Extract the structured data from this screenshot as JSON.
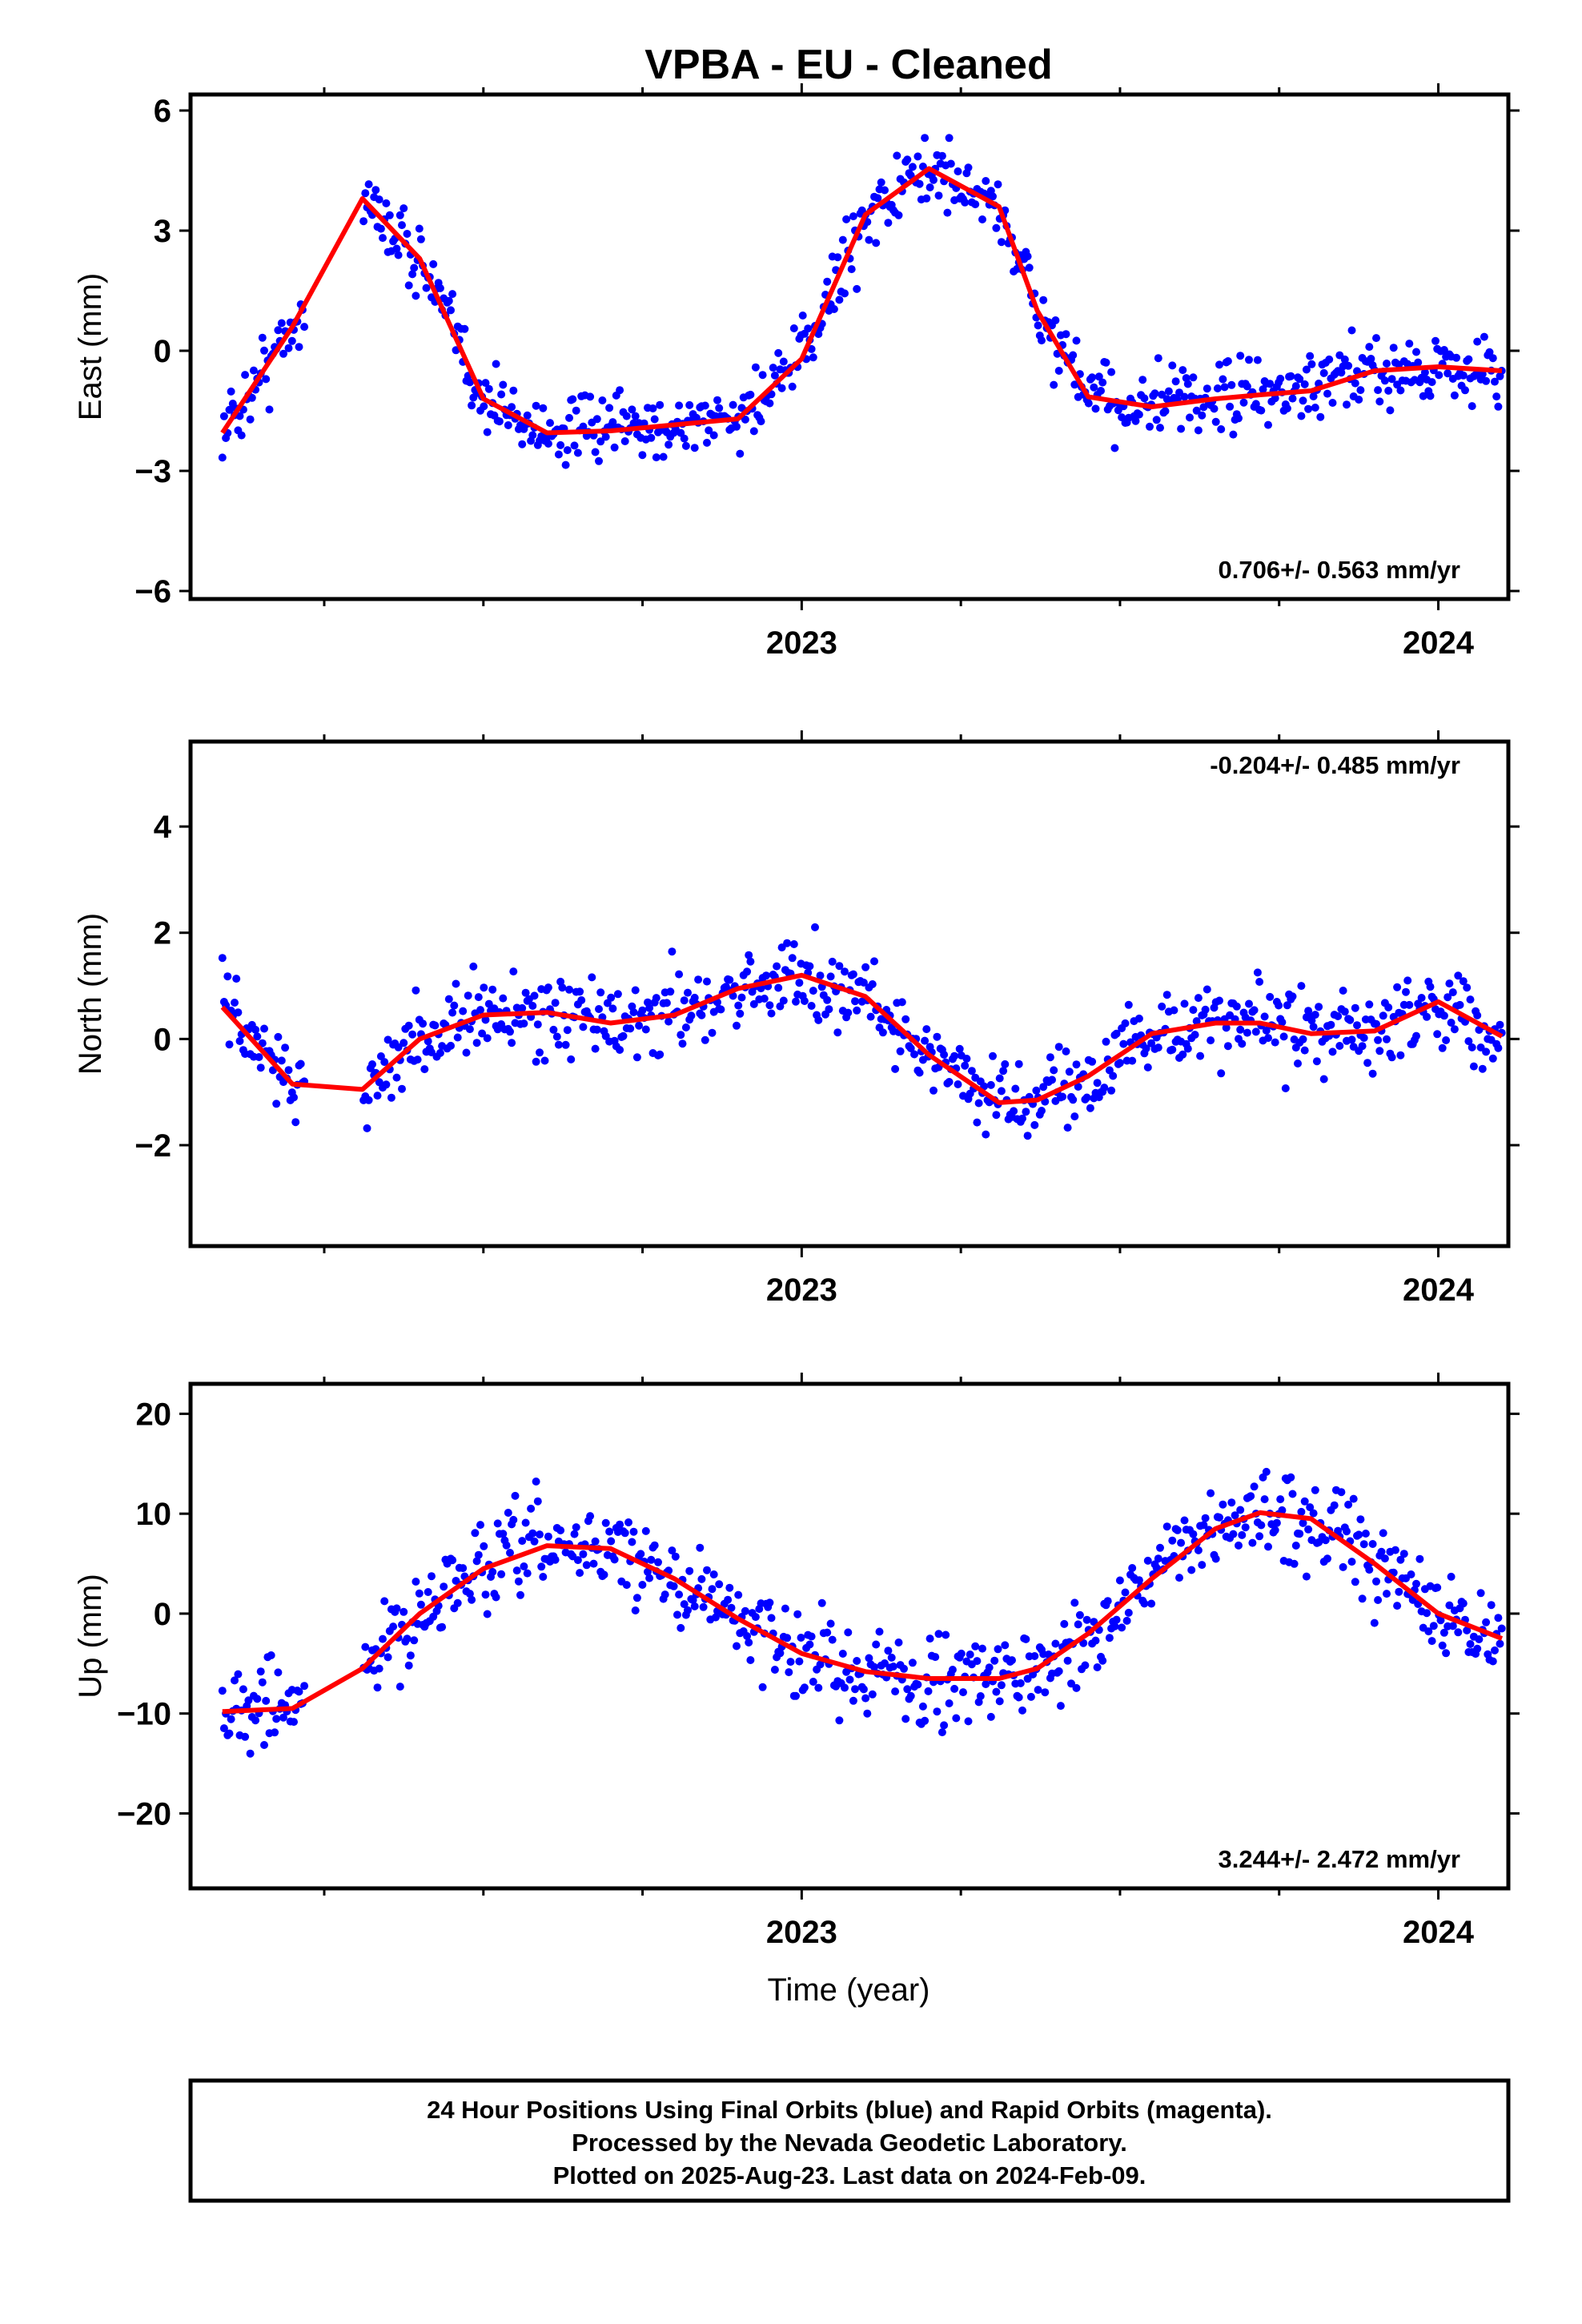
{
  "title": "VPBA  - EU - Cleaned",
  "xlabel": "Time (year)",
  "footer": {
    "line1": "24 Hour Positions Using Final Orbits (blue) and Rapid Orbits (magenta).",
    "line2": "Processed by the Nevada Geodetic Laboratory.",
    "line3": "Plotted on 2025-Aug-23. Last data on 2024-Feb-09."
  },
  "colors": {
    "final_orbit_points": "#0000ff",
    "fit_curve": "#ff0000",
    "axes": "#000000"
  },
  "chart_data": [
    {
      "type": "scatter",
      "ylabel": "East (mm)",
      "rate": "0.706+/- 0.563 mm/yr",
      "xlim": [
        2022.04,
        2024.11
      ],
      "ylim": [
        -6.2,
        6.4
      ],
      "xticks": [
        2023,
        2024
      ],
      "yticks": [
        6,
        3,
        0,
        -3,
        -6
      ],
      "ytick_labels": [
        "6",
        "3",
        "0",
        "−3",
        "−6"
      ],
      "fit": {
        "name": "fit",
        "x": [
          2022.09,
          2022.2,
          2022.31,
          2022.4,
          2022.5,
          2022.6,
          2022.7,
          2022.8,
          2022.9,
          2023.0,
          2023.1,
          2023.2,
          2023.31,
          2023.37,
          2023.45,
          2023.55,
          2023.65,
          2023.72,
          2023.8,
          2023.9,
          2024.0,
          2024.1
        ],
        "y": [
          -2.05,
          0.6,
          3.8,
          2.3,
          -1.2,
          -2.05,
          -2.0,
          -1.85,
          -1.7,
          -0.2,
          3.4,
          4.55,
          3.6,
          1.0,
          -1.15,
          -1.4,
          -1.2,
          -1.1,
          -1.0,
          -0.5,
          -0.4,
          -0.5
        ]
      },
      "points": {
        "name": "final orbits",
        "center": [
          [
            2022.09,
            -2.05
          ],
          [
            2022.2,
            0.6
          ],
          [
            2022.31,
            3.8
          ],
          [
            2022.4,
            2.3
          ],
          [
            2022.5,
            -1.2
          ],
          [
            2022.6,
            -2.05
          ],
          [
            2022.7,
            -2.0
          ],
          [
            2022.8,
            -1.85
          ],
          [
            2022.9,
            -1.7
          ],
          [
            2023.0,
            -0.2
          ],
          [
            2023.1,
            3.4
          ],
          [
            2023.2,
            4.55
          ],
          [
            2023.31,
            3.6
          ],
          [
            2023.37,
            1.0
          ],
          [
            2023.45,
            -1.15
          ],
          [
            2023.55,
            -1.4
          ],
          [
            2023.65,
            -1.2
          ],
          [
            2023.72,
            -1.1
          ],
          [
            2023.8,
            -1.0
          ],
          [
            2023.9,
            -0.5
          ],
          [
            2024.0,
            -0.4
          ],
          [
            2024.1,
            -0.5
          ]
        ],
        "spread": 1.1,
        "gap": [
          2022.22,
          2022.31
        ]
      }
    },
    {
      "type": "scatter",
      "ylabel": "North (mm)",
      "rate": "-0.204+/- 0.485 mm/yr",
      "xlim": [
        2022.04,
        2024.11
      ],
      "ylim": [
        -3.9,
        5.6
      ],
      "xticks": [
        2023,
        2024
      ],
      "yticks": [
        4,
        2,
        0,
        -2
      ],
      "ytick_labels": [
        "4",
        "2",
        "0",
        "−2"
      ],
      "fit": {
        "name": "fit",
        "x": [
          2022.09,
          2022.2,
          2022.31,
          2022.4,
          2022.5,
          2022.6,
          2022.7,
          2022.8,
          2022.9,
          2023.0,
          2023.1,
          2023.2,
          2023.31,
          2023.37,
          2023.45,
          2023.55,
          2023.65,
          2023.72,
          2023.8,
          2023.9,
          2024.0,
          2024.1
        ],
        "y": [
          0.6,
          -0.85,
          -0.95,
          0.0,
          0.45,
          0.5,
          0.3,
          0.45,
          0.95,
          1.2,
          0.8,
          -0.3,
          -1.2,
          -1.15,
          -0.7,
          0.1,
          0.3,
          0.3,
          0.1,
          0.15,
          0.7,
          0.05
        ]
      },
      "points": {
        "name": "final orbits",
        "center": [
          [
            2022.09,
            0.6
          ],
          [
            2022.2,
            -0.85
          ],
          [
            2022.31,
            -0.95
          ],
          [
            2022.4,
            0.0
          ],
          [
            2022.5,
            0.45
          ],
          [
            2022.6,
            0.5
          ],
          [
            2022.7,
            0.3
          ],
          [
            2022.8,
            0.45
          ],
          [
            2022.9,
            0.95
          ],
          [
            2023.0,
            1.2
          ],
          [
            2023.1,
            0.8
          ],
          [
            2023.2,
            -0.3
          ],
          [
            2023.31,
            -1.2
          ],
          [
            2023.37,
            -1.15
          ],
          [
            2023.45,
            -0.7
          ],
          [
            2023.55,
            0.1
          ],
          [
            2023.65,
            0.3
          ],
          [
            2023.72,
            0.3
          ],
          [
            2023.8,
            0.1
          ],
          [
            2023.9,
            0.15
          ],
          [
            2024.0,
            0.7
          ],
          [
            2024.1,
            0.05
          ]
        ],
        "spread": 0.95,
        "gap": [
          2022.22,
          2022.31
        ]
      }
    },
    {
      "type": "scatter",
      "ylabel": "Up (mm)",
      "rate": "3.244+/- 2.472 mm/yr",
      "xlim": [
        2022.04,
        2024.11
      ],
      "ylim": [
        -27.5,
        23
      ],
      "xticks": [
        2023,
        2024
      ],
      "yticks": [
        20,
        10,
        0,
        -10,
        -20
      ],
      "ytick_labels": [
        "20",
        "10",
        "0",
        "−10",
        "−20"
      ],
      "fit": {
        "name": "fit",
        "x": [
          2022.09,
          2022.2,
          2022.31,
          2022.4,
          2022.5,
          2022.6,
          2022.7,
          2022.8,
          2022.9,
          2023.0,
          2023.1,
          2023.2,
          2023.31,
          2023.37,
          2023.45,
          2023.55,
          2023.65,
          2023.72,
          2023.8,
          2023.9,
          2024.0,
          2024.1
        ],
        "y": [
          -9.8,
          -9.5,
          -5.5,
          0.0,
          4.5,
          6.8,
          6.5,
          3.5,
          -0.5,
          -4.0,
          -5.8,
          -6.5,
          -6.5,
          -5.5,
          -2.0,
          3.5,
          8.5,
          10.1,
          9.5,
          5.0,
          0.0,
          -2.5
        ]
      },
      "points": {
        "name": "final orbits",
        "center": [
          [
            2022.09,
            -9.8
          ],
          [
            2022.2,
            -9.5
          ],
          [
            2022.31,
            -5.5
          ],
          [
            2022.4,
            0.0
          ],
          [
            2022.5,
            4.5
          ],
          [
            2022.6,
            6.8
          ],
          [
            2022.7,
            6.5
          ],
          [
            2022.8,
            3.5
          ],
          [
            2022.9,
            -0.5
          ],
          [
            2023.0,
            -4.0
          ],
          [
            2023.1,
            -5.8
          ],
          [
            2023.2,
            -6.5
          ],
          [
            2023.31,
            -6.5
          ],
          [
            2023.37,
            -5.5
          ],
          [
            2023.45,
            -2.0
          ],
          [
            2023.55,
            3.5
          ],
          [
            2023.65,
            8.5
          ],
          [
            2023.72,
            10.1
          ],
          [
            2023.8,
            9.5
          ],
          [
            2023.9,
            5.0
          ],
          [
            2024.0,
            0.0
          ],
          [
            2024.1,
            -2.5
          ]
        ],
        "spread": 5.5,
        "gap": [
          2022.22,
          2022.31
        ]
      }
    }
  ]
}
